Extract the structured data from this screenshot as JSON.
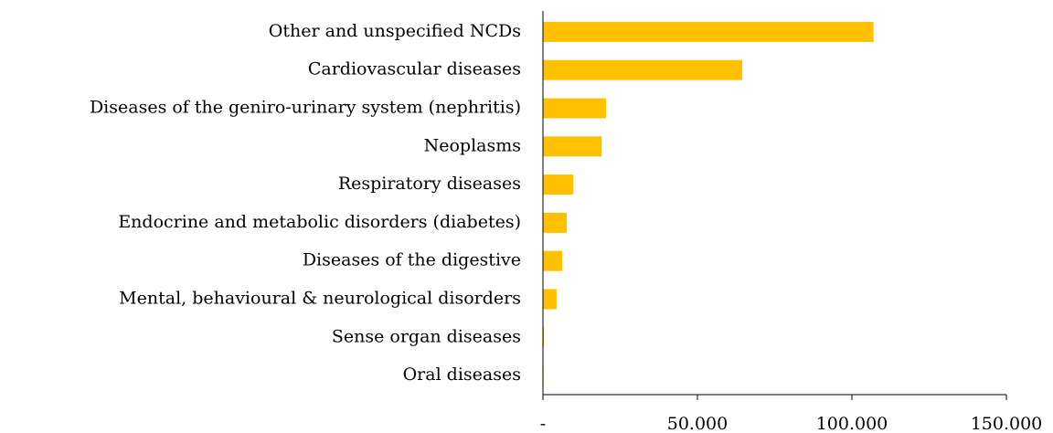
{
  "chart_data": {
    "type": "hbar",
    "categories": [
      "Other and unspecified NCDs",
      "Cardiovascular diseases",
      "Diseases of the geniro-urinary system (nephritis)",
      "Neoplasms",
      "Respiratory diseases",
      "Endocrine and metabolic disorders (diabetes)",
      "Diseases of the digestive",
      "Mental, behavioural & neurological disorders",
      "Sense organ diseases",
      "Oral diseases"
    ],
    "values": [
      107000,
      64500,
      20400,
      19000,
      9800,
      7700,
      6200,
      4400,
      300,
      200
    ],
    "color": "#ffc000",
    "xlim": [
      0,
      150000
    ],
    "xticks": [
      {
        "value": 0,
        "label": "-"
      },
      {
        "value": 50000,
        "label": "50.000"
      },
      {
        "value": 100000,
        "label": "100.000"
      },
      {
        "value": 150000,
        "label": "150.000"
      }
    ]
  }
}
